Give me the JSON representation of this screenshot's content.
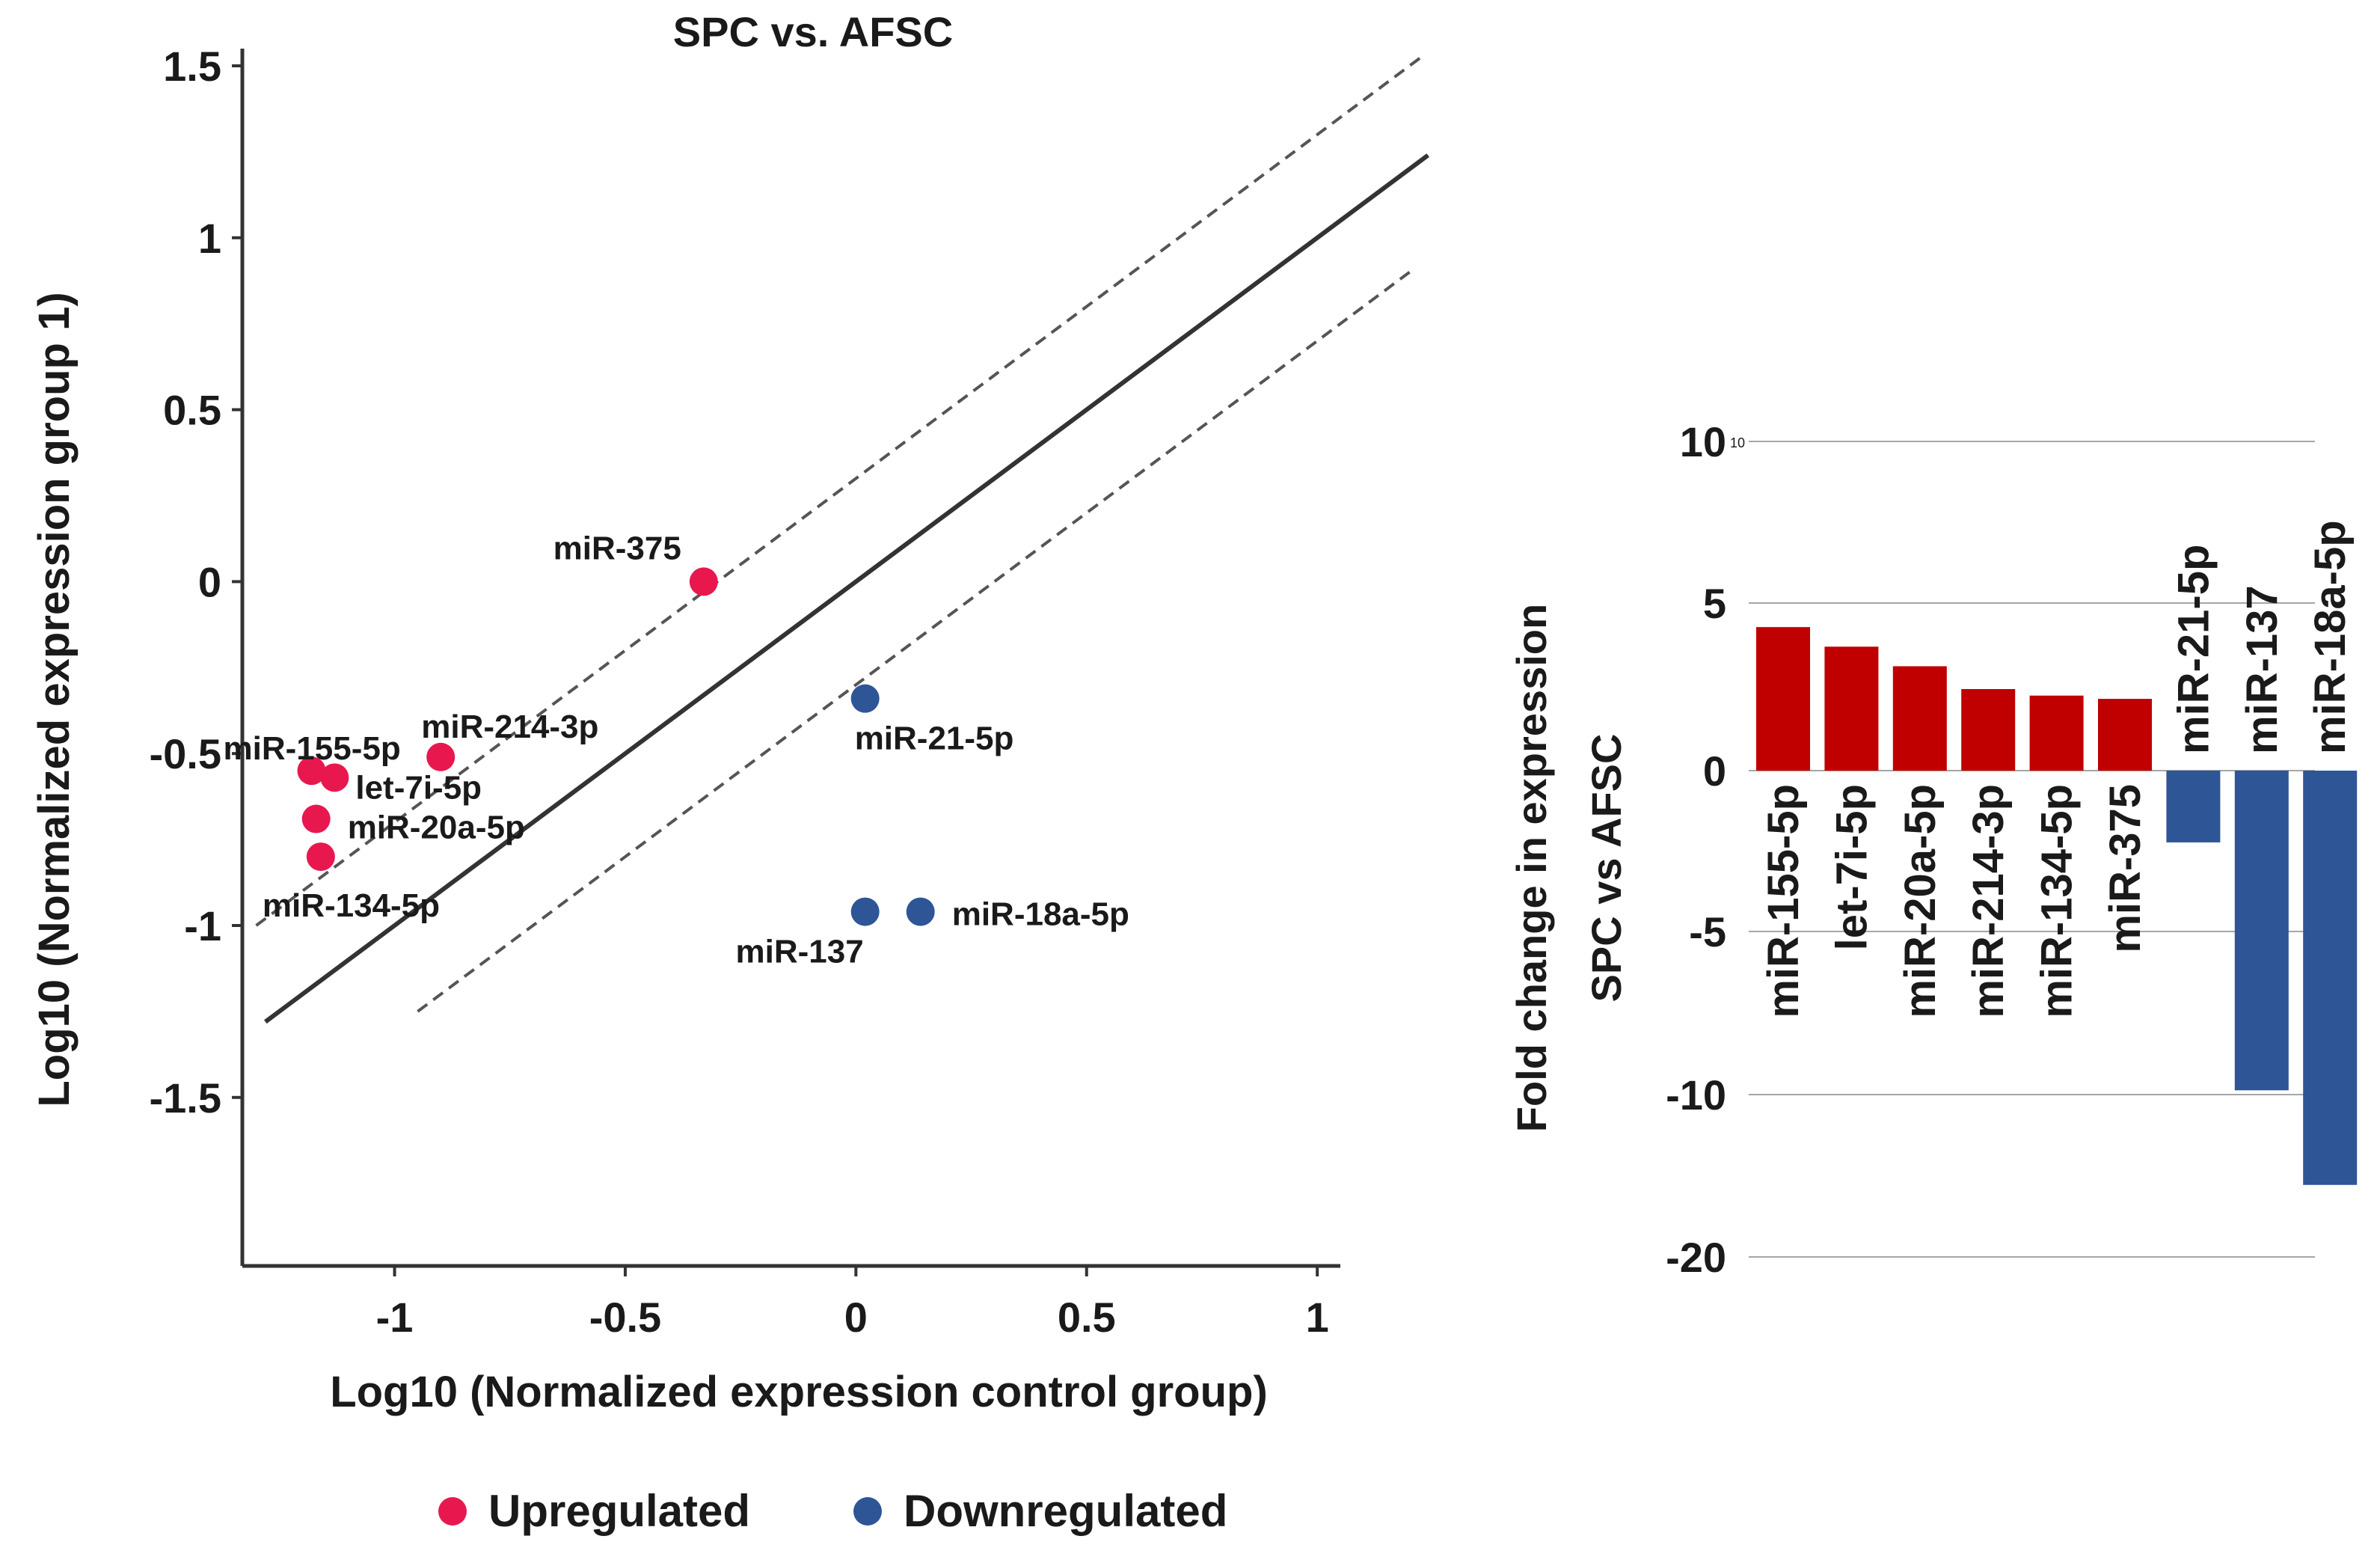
{
  "chart_data": [
    {
      "type": "scatter",
      "title": "SPC vs. AFSC",
      "xlabel": "Log10 (Normalized expression control group)",
      "ylabel": "Log10 (Normalized expression group 1)",
      "xlim": [
        -1.33,
        1.05
      ],
      "ylim": [
        -1.99,
        1.55
      ],
      "x_ticks": [
        -1,
        -0.5,
        0,
        0.5,
        1
      ],
      "y_ticks": [
        1.5,
        1,
        0.5,
        0,
        -0.5,
        -1,
        -1.5
      ],
      "lines": [
        {
          "style": "solid",
          "color": "#333333",
          "x": [
            -1.28,
            1.24
          ],
          "y": [
            -1.28,
            1.24
          ]
        },
        {
          "style": "dashed",
          "color": "#555555",
          "x": [
            -1.3,
            1.23
          ],
          "y": [
            -1.0,
            1.53
          ]
        },
        {
          "style": "dashed",
          "color": "#555555",
          "x": [
            -0.95,
            1.2
          ],
          "y": [
            -1.25,
            0.9
          ]
        }
      ],
      "legend": {
        "placement": "bottom",
        "items": [
          {
            "label": "Upregulated",
            "color": "#e8184e"
          },
          {
            "label": "Downregulated",
            "color": "#2e5596"
          }
        ]
      },
      "series": [
        {
          "name": "Upregulated",
          "color": "#e8184e",
          "points": [
            {
              "label": "miR-375",
              "x": -0.33,
              "y": 0.0
            },
            {
              "label": "miR-214-3p",
              "x": -0.9,
              "y": -0.51
            },
            {
              "label": "miR-155-5p",
              "x": -1.18,
              "y": -0.55
            },
            {
              "label": "let-7i-5p",
              "x": -1.13,
              "y": -0.57
            },
            {
              "label": "miR-20a-5p",
              "x": -1.17,
              "y": -0.69
            },
            {
              "label": "miR-134-5p",
              "x": -1.16,
              "y": -0.8
            }
          ]
        },
        {
          "name": "Downregulated",
          "color": "#2e5596",
          "points": [
            {
              "label": "miR-21-5p",
              "x": 0.02,
              "y": -0.34
            },
            {
              "label": "miR-137",
              "x": 0.02,
              "y": -0.96
            },
            {
              "label": "miR-18a-5p",
              "x": 0.14,
              "y": -0.96
            }
          ]
        }
      ]
    },
    {
      "type": "bar",
      "ylabel_line1": "Fold change in expression",
      "ylabel_line2": "SPC vs AFSC",
      "y_ticks": [
        10,
        5,
        0,
        -5,
        -10,
        -20
      ],
      "y_tick_small": "10",
      "categories": [
        "miR-155-5p",
        "let-7i-5p",
        "miR-20a-5p",
        "miR-214-3p",
        "miR-134-5p",
        "miR-375",
        "miR-21-5p",
        "miR-137",
        "miR-18a-5p"
      ],
      "values": [
        4.4,
        3.8,
        3.2,
        2.5,
        2.3,
        2.2,
        -2.2,
        -9.8,
        -12.7
      ],
      "colors": [
        "#c00000",
        "#c00000",
        "#c00000",
        "#c00000",
        "#c00000",
        "#c00000",
        "#2e5596",
        "#2e5596",
        "#2e5596"
      ],
      "grid": true
    }
  ]
}
